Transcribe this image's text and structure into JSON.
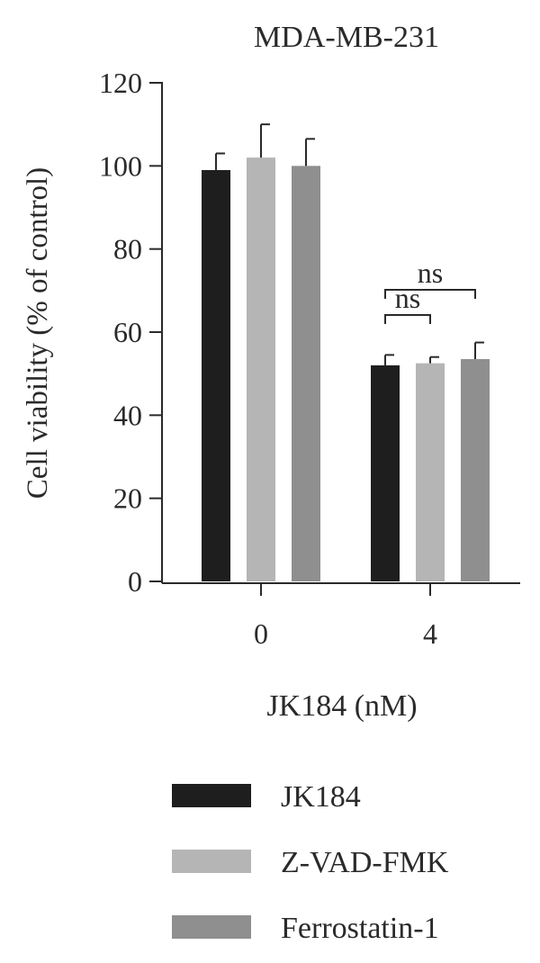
{
  "chart_data": {
    "type": "bar",
    "title": "MDA-MB-231",
    "xlabel": "JK184 (nM)",
    "ylabel": "Cell viability (% of control)",
    "ylim": [
      0,
      120
    ],
    "yticks": [
      0,
      20,
      40,
      60,
      80,
      100,
      120
    ],
    "categories": [
      "0",
      "4"
    ],
    "series": [
      {
        "name": "JK184",
        "color": "#1e1e1e",
        "values": [
          99,
          52
        ],
        "errors": [
          4,
          2.5
        ]
      },
      {
        "name": "Z-VAD-FMK",
        "color": "#b5b5b5",
        "values": [
          102,
          52.5
        ],
        "errors": [
          8,
          1.5
        ]
      },
      {
        "name": "Ferrostatin-1",
        "color": "#8f8f8f",
        "values": [
          100,
          53.5
        ],
        "errors": [
          6.5,
          4
        ]
      }
    ],
    "annotations": [
      {
        "text": "ns",
        "category": "4",
        "from_series": 0,
        "to_series": 1
      },
      {
        "text": "ns",
        "category": "4",
        "from_series": 0,
        "to_series": 2
      }
    ],
    "legend_position": "bottom"
  }
}
